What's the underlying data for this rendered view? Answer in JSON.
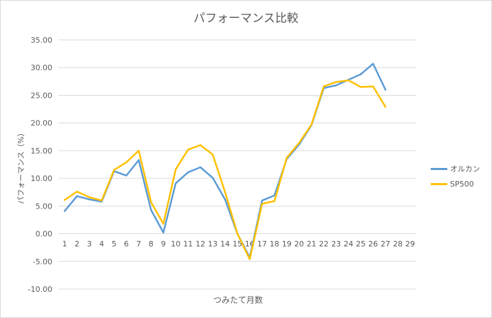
{
  "chart_data": {
    "type": "line",
    "title": "パフォーマンス比較",
    "xlabel": "つみたて月数",
    "ylabel": "パフォーマンス（%）",
    "categories": [
      "1",
      "2",
      "3",
      "4",
      "5",
      "6",
      "7",
      "8",
      "9",
      "10",
      "11",
      "12",
      "13",
      "14",
      "15",
      "16",
      "17",
      "18",
      "19",
      "20",
      "21",
      "22",
      "23",
      "24",
      "25",
      "26",
      "27",
      "28",
      "29"
    ],
    "ylim": [
      -10,
      35
    ],
    "yticks": [
      "35.00",
      "30.00",
      "25.00",
      "20.00",
      "15.00",
      "10.00",
      "5.00",
      "0.00",
      "-5.00",
      "-10.00"
    ],
    "grid": true,
    "legend_position": "right",
    "series": [
      {
        "name": "オルカン",
        "color": "#5b9bd5",
        "values": [
          4.1,
          6.8,
          6.2,
          5.8,
          11.3,
          10.5,
          13.3,
          4.3,
          0.2,
          9.1,
          11.1,
          12.0,
          10.1,
          6.2,
          0.0,
          -4.3,
          6.0,
          6.9,
          13.5,
          16.1,
          19.6,
          26.3,
          26.8,
          27.8,
          28.8,
          30.7,
          26.0,
          null,
          null
        ]
      },
      {
        "name": "SP500",
        "color": "#ffc000",
        "values": [
          6.1,
          7.6,
          6.6,
          6.0,
          11.5,
          12.9,
          15.0,
          5.7,
          1.8,
          11.6,
          15.2,
          16.0,
          14.3,
          7.5,
          0.0,
          -4.6,
          5.4,
          5.9,
          13.7,
          16.4,
          19.7,
          26.6,
          27.4,
          27.7,
          26.5,
          26.6,
          22.9,
          null,
          null
        ]
      }
    ]
  }
}
